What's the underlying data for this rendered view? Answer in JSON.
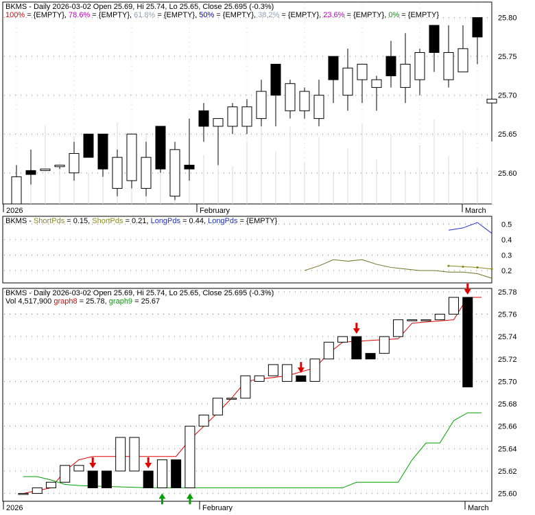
{
  "chart_data": [
    {
      "panel": "price-candles",
      "type": "candlestick",
      "title": "BKMS - Daily 2026-03-02 Open 25.69, Hi 25.74, Lo 25.65, Close 25.695 (-0.3%)",
      "title_prefix": "BKMS - Daily 2026-03-02 Open 25.69, Hi 25.74, Lo 25.65, Close 25.695 (-0.3%)",
      "legend": [
        {
          "label": "100%",
          "value": " = {EMPTY}",
          "color": "#e00000"
        },
        {
          "label": "78.6%",
          "value": " = {EMPTY}",
          "color": "#c000c0"
        },
        {
          "label": "61.8%",
          "value": " = {EMPTY}",
          "color": "#90a0b8"
        },
        {
          "label": "50%",
          "value": " = {EMPTY}",
          "color": "#0000d0"
        },
        {
          "label": "38.2%",
          "value": " = {EMPTY}",
          "color": "#90a0b8"
        },
        {
          "label": "23.6%",
          "value": " = {EMPTY}",
          "color": "#c000c0"
        },
        {
          "label": "0%",
          "value": " = {EMPTY}",
          "color": "#00a000"
        }
      ],
      "yticks": [
        "25.80",
        "25.75",
        "25.70",
        "25.65",
        "25.60"
      ],
      "ylim": [
        25.56,
        25.82
      ],
      "xlabels": [
        "2026",
        "February",
        "March"
      ],
      "candles": [
        {
          "o": 25.56,
          "h": 25.61,
          "l": 25.56,
          "c": 25.595
        },
        {
          "o": 25.603,
          "h": 25.63,
          "l": 25.585,
          "c": 25.598
        },
        {
          "o": 25.603,
          "h": 25.605,
          "l": 25.603,
          "c": 25.605
        },
        {
          "o": 25.608,
          "h": 25.61,
          "l": 25.605,
          "c": 25.61
        },
        {
          "o": 25.6,
          "h": 25.64,
          "l": 25.59,
          "c": 25.625
        },
        {
          "o": 25.65,
          "h": 25.65,
          "l": 25.62,
          "c": 25.62
        },
        {
          "o": 25.65,
          "h": 25.65,
          "l": 25.595,
          "c": 25.605
        },
        {
          "o": 25.58,
          "h": 25.63,
          "l": 25.57,
          "c": 25.62
        },
        {
          "o": 25.59,
          "h": 25.65,
          "l": 25.58,
          "c": 25.65
        },
        {
          "o": 25.58,
          "h": 25.64,
          "l": 25.57,
          "c": 25.62
        },
        {
          "o": 25.66,
          "h": 25.66,
          "l": 25.6,
          "c": 25.605
        },
        {
          "o": 25.57,
          "h": 25.64,
          "l": 25.565,
          "c": 25.63
        },
        {
          "o": 25.61,
          "h": 25.67,
          "l": 25.59,
          "c": 25.605
        },
        {
          "o": 25.68,
          "h": 25.69,
          "l": 25.64,
          "c": 25.66
        },
        {
          "o": 25.66,
          "h": 25.67,
          "l": 25.61,
          "c": 25.67
        },
        {
          "o": 25.66,
          "h": 25.69,
          "l": 25.65,
          "c": 25.685
        },
        {
          "o": 25.66,
          "h": 25.695,
          "l": 25.65,
          "c": 25.685
        },
        {
          "o": 25.67,
          "h": 25.72,
          "l": 25.66,
          "c": 25.705
        },
        {
          "o": 25.74,
          "h": 25.74,
          "l": 25.66,
          "c": 25.7
        },
        {
          "o": 25.68,
          "h": 25.72,
          "l": 25.67,
          "c": 25.715
        },
        {
          "o": 25.68,
          "h": 25.71,
          "l": 25.67,
          "c": 25.705
        },
        {
          "o": 25.67,
          "h": 25.72,
          "l": 25.66,
          "c": 25.7
        },
        {
          "o": 25.75,
          "h": 25.75,
          "l": 25.69,
          "c": 25.72
        },
        {
          "o": 25.7,
          "h": 25.76,
          "l": 25.68,
          "c": 25.735
        },
        {
          "o": 25.72,
          "h": 25.74,
          "l": 25.69,
          "c": 25.74
        },
        {
          "o": 25.71,
          "h": 25.725,
          "l": 25.68,
          "c": 25.72
        },
        {
          "o": 25.75,
          "h": 25.77,
          "l": 25.71,
          "c": 25.725
        },
        {
          "o": 25.71,
          "h": 25.78,
          "l": 25.69,
          "c": 25.74
        },
        {
          "o": 25.72,
          "h": 25.76,
          "l": 25.7,
          "c": 25.755
        },
        {
          "o": 25.79,
          "h": 25.79,
          "l": 25.73,
          "c": 25.755
        },
        {
          "o": 25.72,
          "h": 25.79,
          "l": 25.71,
          "c": 25.755
        },
        {
          "o": 25.73,
          "h": 25.79,
          "l": 25.73,
          "c": 25.76
        },
        {
          "o": 25.8,
          "h": 25.8,
          "l": 25.74,
          "c": 25.775
        },
        {
          "o": 25.69,
          "h": 25.74,
          "l": 25.65,
          "c": 25.695
        }
      ]
    },
    {
      "panel": "short-pds",
      "type": "line",
      "legend": [
        {
          "label": "BKMS - ",
          "color": "#000000"
        },
        {
          "label": "ShortPds",
          "color": "#8a8a20"
        },
        {
          "label": " = 0.15, ",
          "color": "#000000"
        },
        {
          "label": "ShortPds",
          "color": "#8a8a20"
        },
        {
          "label": " = 0.21, ",
          "color": "#000000"
        },
        {
          "label": "LongPds",
          "color": "#2030c0"
        },
        {
          "label": " = 0.44, ",
          "color": "#000000"
        },
        {
          "label": "LongPds",
          "color": "#2030c0"
        },
        {
          "label": " = {EMPTY}",
          "color": "#000000"
        }
      ],
      "yticks": [
        "0.5",
        "0.4",
        "0.3",
        "0.2"
      ],
      "ylim": [
        0.12,
        0.55
      ],
      "series": [
        {
          "color": "#707020",
          "points": [
            [
              20,
              0.2
            ],
            [
              21,
              0.23
            ],
            [
              22,
              0.27
            ],
            [
              23,
              0.26
            ],
            [
              24,
              0.27
            ],
            [
              25,
              0.24
            ],
            [
              26,
              0.22
            ],
            [
              27,
              0.21
            ],
            [
              28,
              0.2
            ],
            [
              29,
              0.2
            ],
            [
              30,
              0.19
            ],
            [
              31,
              0.19
            ],
            [
              32,
              0.18
            ],
            [
              33,
              0.15
            ]
          ]
        },
        {
          "color": "#8a8a20",
          "dots": true,
          "points": [
            [
              30,
              0.23
            ],
            [
              31,
              0.225
            ],
            [
              32,
              0.22
            ],
            [
              33,
              0.21
            ]
          ]
        },
        {
          "color": "#2030c0",
          "points": [
            [
              30,
              0.46
            ],
            [
              31,
              0.475
            ],
            [
              32,
              0.51
            ],
            [
              33,
              0.44
            ]
          ]
        }
      ]
    },
    {
      "panel": "kagi-renko",
      "type": "box-steps",
      "title": "BKMS - Daily 2026-03-02 Open 25.69, Hi 25.74, Lo 25.65, Close 25.695 (-0.3%)",
      "legend_line2": [
        {
          "label": "Vol 4,517,900 ",
          "color": "#000000"
        },
        {
          "label": "graph8",
          "color": "#e00000"
        },
        {
          "label": " = 25.78, ",
          "color": "#000000"
        },
        {
          "label": "graph9",
          "color": "#00a000"
        },
        {
          "label": " = 25.67",
          "color": "#000000"
        }
      ],
      "yticks": [
        "25.78",
        "25.76",
        "25.74",
        "25.72",
        "25.70",
        "25.68",
        "25.66",
        "25.64",
        "25.62",
        "25.60"
      ],
      "ylim": [
        25.593,
        25.783
      ],
      "xlabels": [
        "2026",
        "February",
        "March"
      ],
      "boxes": [
        {
          "a": 25.6,
          "b": 25.6
        },
        {
          "a": 25.6,
          "b": 25.605
        },
        {
          "a": 25.605,
          "b": 25.61
        },
        {
          "a": 25.61,
          "b": 25.625
        },
        {
          "a": 25.62,
          "b": 25.625
        },
        {
          "a": 25.62,
          "b": 25.605,
          "black": true
        },
        {
          "a": 25.62,
          "b": 25.605,
          "black": true
        },
        {
          "a": 25.62,
          "b": 25.65
        },
        {
          "a": 25.62,
          "b": 25.65
        },
        {
          "a": 25.62,
          "b": 25.605,
          "black": true
        },
        {
          "a": 25.605,
          "b": 25.63
        },
        {
          "a": 25.63,
          "b": 25.605,
          "black": true
        },
        {
          "a": 25.605,
          "b": 25.66
        },
        {
          "a": 25.66,
          "b": 25.67
        },
        {
          "a": 25.67,
          "b": 25.685
        },
        {
          "a": 25.685,
          "b": 25.685
        },
        {
          "a": 25.685,
          "b": 25.705
        },
        {
          "a": 25.7,
          "b": 25.705
        },
        {
          "a": 25.705,
          "b": 25.715
        },
        {
          "a": 25.7,
          "b": 25.715
        },
        {
          "a": 25.705,
          "b": 25.7,
          "black": true
        },
        {
          "a": 25.7,
          "b": 25.72
        },
        {
          "a": 25.72,
          "b": 25.735
        },
        {
          "a": 25.735,
          "b": 25.74
        },
        {
          "a": 25.74,
          "b": 25.72,
          "black": true
        },
        {
          "a": 25.725,
          "b": 25.72,
          "black": true
        },
        {
          "a": 25.725,
          "b": 25.74
        },
        {
          "a": 25.74,
          "b": 25.755
        },
        {
          "a": 25.755,
          "b": 25.755
        },
        {
          "a": 25.755,
          "b": 25.755
        },
        {
          "a": 25.755,
          "b": 25.76
        },
        {
          "a": 25.76,
          "b": 25.775
        },
        {
          "a": 25.775,
          "b": 25.695,
          "black": true
        }
      ],
      "red_arrows_down": [
        5,
        9,
        20,
        24,
        32
      ],
      "green_arrows_up": [
        10,
        12
      ],
      "series": [
        {
          "name": "graph8",
          "color": "#e00000",
          "points": [
            [
              0,
              25.6
            ],
            [
              2,
              25.605
            ],
            [
              3,
              25.62
            ],
            [
              4,
              25.63
            ],
            [
              5,
              25.633
            ],
            [
              11,
              25.633
            ],
            [
              12,
              25.648
            ],
            [
              13,
              25.66
            ],
            [
              14,
              25.672
            ],
            [
              15,
              25.685
            ],
            [
              16,
              25.7
            ],
            [
              17,
              25.702
            ],
            [
              19,
              25.705
            ],
            [
              21,
              25.712
            ],
            [
              22,
              25.725
            ],
            [
              23,
              25.735
            ],
            [
              27,
              25.738
            ],
            [
              28,
              25.752
            ],
            [
              31,
              25.755
            ],
            [
              32,
              25.775
            ],
            [
              33,
              25.775
            ]
          ]
        },
        {
          "name": "graph9",
          "color": "#00a000",
          "points": [
            [
              0,
              25.615
            ],
            [
              1,
              25.615
            ],
            [
              2,
              25.612
            ],
            [
              3,
              25.608
            ],
            [
              4,
              25.607
            ],
            [
              9,
              25.605
            ],
            [
              23,
              25.605
            ],
            [
              24,
              25.61
            ],
            [
              27,
              25.61
            ],
            [
              28,
              25.63
            ],
            [
              29,
              25.645
            ],
            [
              30,
              25.645
            ],
            [
              31,
              25.665
            ],
            [
              32,
              25.672
            ],
            [
              33,
              25.672
            ]
          ]
        }
      ]
    }
  ]
}
